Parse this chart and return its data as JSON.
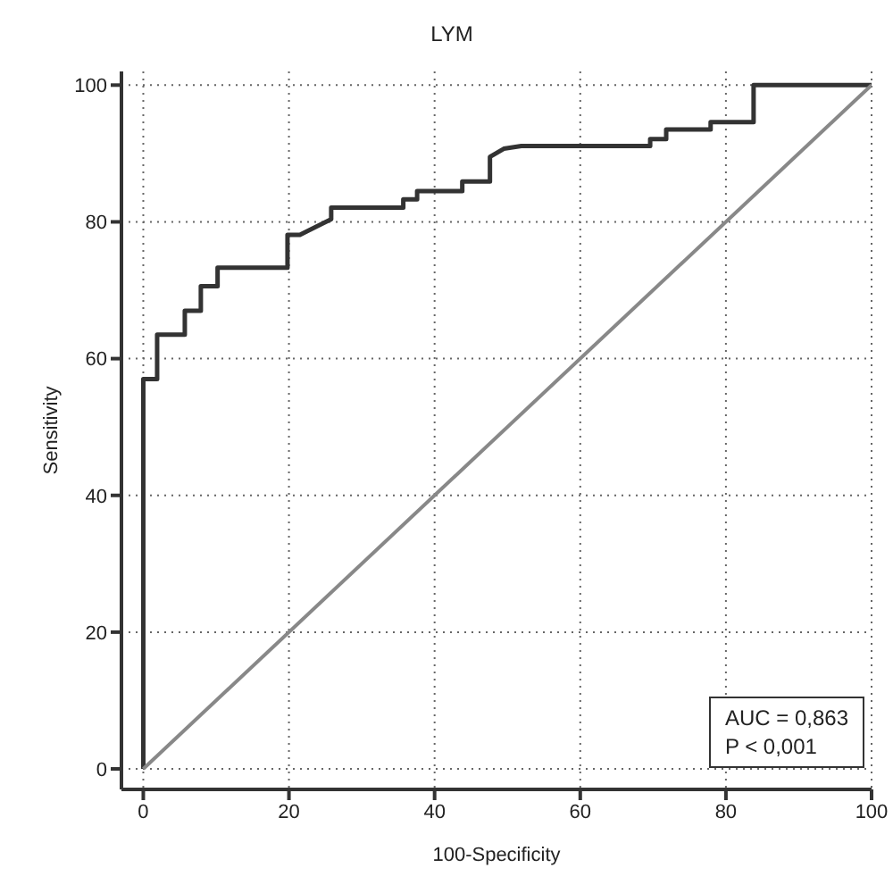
{
  "chart_data": {
    "type": "line",
    "title": "LYM",
    "xlabel": "100-Specificity",
    "ylabel": "Sensitivity",
    "xlim": [
      -3,
      100
    ],
    "ylim": [
      -3,
      102
    ],
    "xticks": [
      0,
      20,
      40,
      60,
      80,
      100
    ],
    "yticks": [
      0,
      20,
      40,
      60,
      80,
      100
    ],
    "grid": true,
    "marker": "none",
    "line_style": "solid",
    "series": [
      {
        "color": "#333333",
        "x": [
          0,
          0,
          1.9,
          1.9,
          5.7,
          5.7,
          7.9,
          7.9,
          10.2,
          10.2,
          19.8,
          19.8,
          21.5,
          25.8,
          25.8,
          35.7,
          35.7,
          37.6,
          37.6,
          43.8,
          43.8,
          47.6,
          47.6,
          49.5,
          51.9,
          69.6,
          69.6,
          71.8,
          71.8,
          77.9,
          77.9,
          83.8,
          83.8,
          100
        ],
        "values": [
          0,
          57,
          57,
          63.5,
          63.5,
          67,
          67,
          70.6,
          70.6,
          73.3,
          73.3,
          78.1,
          78.1,
          80.4,
          82.1,
          82.1,
          83.3,
          83.3,
          84.5,
          84.5,
          85.9,
          85.9,
          89.5,
          90.7,
          91.1,
          91.1,
          92.1,
          92.1,
          93.5,
          93.5,
          94.6,
          94.6,
          100,
          100
        ]
      },
      {
        "color": "#888888",
        "x": [
          0,
          100
        ],
        "values": [
          0,
          100
        ]
      }
    ],
    "annotations": [
      "AUC = 0,863",
      "P < 0,001"
    ]
  }
}
